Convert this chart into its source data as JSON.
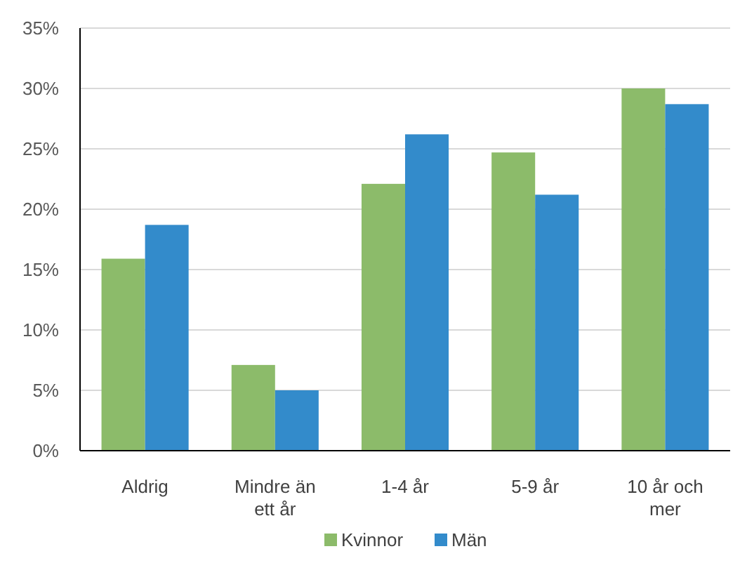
{
  "chart_data": {
    "type": "bar",
    "categories": [
      "Aldrig",
      "Mindre än ett år",
      "1-4 år",
      "5-9 år",
      "10 år och mer"
    ],
    "series": [
      {
        "name": "Kvinnor",
        "color": "#8cbb6a",
        "values": [
          15.9,
          7.1,
          22.1,
          24.7,
          30.0
        ]
      },
      {
        "name": "Män",
        "color": "#338bcb",
        "values": [
          18.7,
          5.0,
          26.2,
          21.2,
          28.7
        ]
      }
    ],
    "ylim": [
      0,
      35
    ],
    "yticks": [
      {
        "value": 0,
        "label": "0%"
      },
      {
        "value": 5,
        "label": "5%"
      },
      {
        "value": 10,
        "label": "10%"
      },
      {
        "value": 15,
        "label": "15%"
      },
      {
        "value": 20,
        "label": "20%"
      },
      {
        "value": 25,
        "label": "25%"
      },
      {
        "value": 30,
        "label": "30%"
      },
      {
        "value": 35,
        "label": "35%"
      }
    ],
    "grid": "y",
    "legend": "bottom"
  }
}
